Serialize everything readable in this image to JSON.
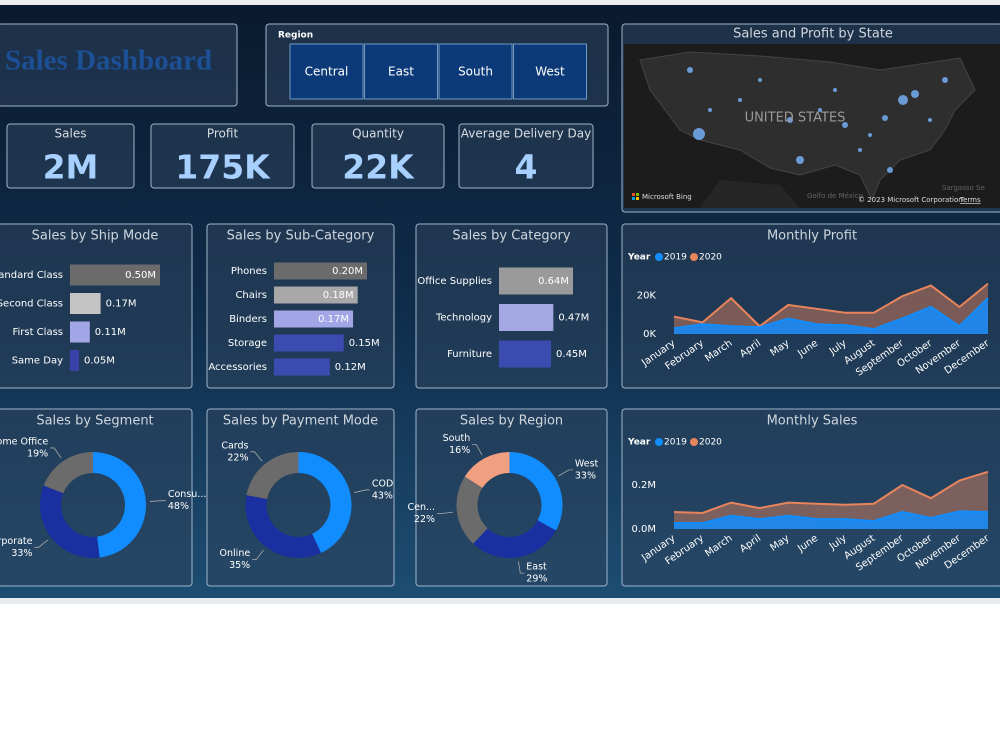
{
  "header": {
    "title": "Sales Dashboard"
  },
  "slicer": {
    "label": "Region",
    "options": [
      "Central",
      "East",
      "South",
      "West"
    ]
  },
  "map": {
    "title": "Sales and Profit by State",
    "label": "UNITED STATES",
    "credit": "Microsoft Bing",
    "copyright": "© 2023 Microsoft Corporation",
    "terms": "Terms",
    "gulf": "Golfo de México",
    "sea": "Sargasso Se"
  },
  "kpis": [
    {
      "label": "Sales",
      "value": "2M"
    },
    {
      "label": "Profit",
      "value": "175K"
    },
    {
      "label": "Quantity",
      "value": "22K"
    },
    {
      "label": "Average Delivery Day",
      "value": "4"
    }
  ],
  "chart_data": [
    {
      "type": "bar",
      "title": "Sales by Ship Mode",
      "categories": [
        "Standard Class",
        "Second Class",
        "First Class",
        "Same Day"
      ],
      "values": [
        0.5,
        0.17,
        0.11,
        0.05
      ],
      "value_labels": [
        "0.50M",
        "0.17M",
        "0.11M",
        "0.05M"
      ],
      "colors": [
        "#6b6b6b",
        "#c4c4c4",
        "#a3a6e6",
        "#3a42a8"
      ]
    },
    {
      "type": "bar",
      "title": "Sales by Sub-Category",
      "categories": [
        "Phones",
        "Chairs",
        "Binders",
        "Storage",
        "Accessories"
      ],
      "values": [
        0.2,
        0.18,
        0.17,
        0.15,
        0.12
      ],
      "value_labels": [
        "0.20M",
        "0.18M",
        "0.17M",
        "0.15M",
        "0.12M"
      ],
      "colors": [
        "#6b6b6b",
        "#a8a8a8",
        "#a3a6e6",
        "#3c4bb0",
        "#3c4bb0"
      ]
    },
    {
      "type": "bar",
      "title": "Sales by Category",
      "categories": [
        "Office Supplies",
        "Technology",
        "Furniture"
      ],
      "values": [
        0.64,
        0.47,
        0.45
      ],
      "value_labels": [
        "0.64M",
        "0.47M",
        "0.45M"
      ],
      "colors": [
        "#9a9a9a",
        "#a3a8e2",
        "#3c4bb0"
      ]
    },
    {
      "type": "area",
      "title": "Monthly Profit",
      "legend_title": "Year",
      "categories": [
        "January",
        "February",
        "March",
        "April",
        "May",
        "June",
        "July",
        "August",
        "September",
        "October",
        "November",
        "December"
      ],
      "series": [
        {
          "name": "2019",
          "color": "#118dff",
          "values": [
            3000,
            5000,
            4000,
            3500,
            8000,
            5000,
            4500,
            2500,
            8000,
            14000,
            4000,
            18500
          ]
        },
        {
          "name": "2020",
          "color": "#e8845c",
          "values": [
            9000,
            6000,
            18500,
            4000,
            15000,
            13000,
            11000,
            11000,
            19500,
            25000,
            14000,
            26000
          ]
        }
      ],
      "ylim": [
        0,
        32000
      ],
      "yticks": [
        {
          "value": 0,
          "label": "0K"
        },
        {
          "value": 20000,
          "label": "20K"
        }
      ]
    },
    {
      "type": "donut",
      "title": "Sales by Segment",
      "categories": [
        "Consu...",
        "Corporate",
        "Home Office"
      ],
      "values": [
        48,
        33,
        19
      ],
      "value_labels": [
        "48%",
        "33%",
        "19%"
      ],
      "colors": [
        "#118dff",
        "#1a2fa0",
        "#6b6b6b"
      ]
    },
    {
      "type": "donut",
      "title": "Sales by Payment Mode",
      "categories": [
        "COD",
        "Online",
        "Cards"
      ],
      "values": [
        43,
        35,
        22
      ],
      "value_labels": [
        "43%",
        "35%",
        "22%"
      ],
      "colors": [
        "#118dff",
        "#1a2fa0",
        "#6b6b6b"
      ]
    },
    {
      "type": "donut",
      "title": "Sales by Region",
      "categories": [
        "West",
        "East",
        "Cen...",
        "South"
      ],
      "values": [
        33,
        29,
        22,
        16
      ],
      "value_labels": [
        "33%",
        "29%",
        "22%",
        "16%"
      ],
      "colors": [
        "#118dff",
        "#1a2fa0",
        "#6b6b6b",
        "#f0a080"
      ]
    },
    {
      "type": "area",
      "title": "Monthly Sales",
      "legend_title": "Year",
      "categories": [
        "January",
        "February",
        "March",
        "April",
        "May",
        "June",
        "July",
        "August",
        "September",
        "October",
        "November",
        "December"
      ],
      "series": [
        {
          "name": "2019",
          "color": "#118dff",
          "values": [
            0.027,
            0.027,
            0.06,
            0.045,
            0.06,
            0.045,
            0.045,
            0.036,
            0.077,
            0.05,
            0.08,
            0.077
          ]
        },
        {
          "name": "2020",
          "color": "#e8845c",
          "values": [
            0.077,
            0.073,
            0.12,
            0.095,
            0.12,
            0.115,
            0.11,
            0.115,
            0.2,
            0.14,
            0.22,
            0.26
          ]
        }
      ],
      "ylim": [
        0,
        0.3
      ],
      "yticks": [
        {
          "value": 0,
          "label": "0.0M"
        },
        {
          "value": 0.2,
          "label": "0.2M"
        }
      ]
    }
  ]
}
